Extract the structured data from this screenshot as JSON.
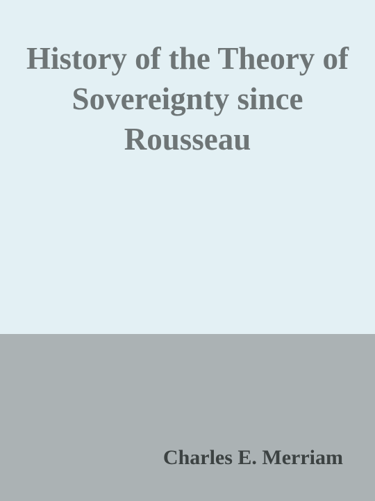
{
  "cover": {
    "title": "History of the Theory of Sovereignty since Rousseau",
    "author": "Charles E. Merriam",
    "colors": {
      "top_background": "#e3f0f4",
      "bottom_background": "#abb2b4",
      "title_text": "#6e7576",
      "author_text": "#3c4242"
    }
  }
}
